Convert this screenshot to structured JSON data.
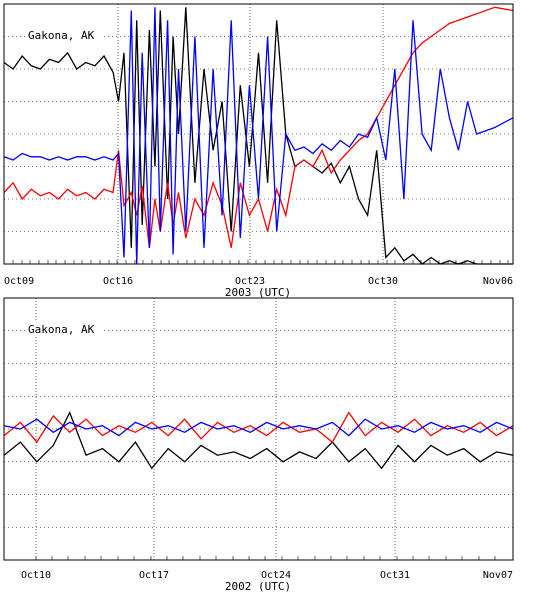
{
  "colors": {
    "background": "#ffffff",
    "grid": "#000000",
    "series_black": "#000000",
    "series_red": "#ff0000",
    "series_blue": "#0000ff"
  },
  "chart_data": [
    {
      "type": "line",
      "station_label": "Gakona, AK",
      "xlabel": "2003 (UTC)",
      "ylabel": "",
      "x_start": "2003-10-09",
      "x_end": "2003-11-06",
      "xticks": [
        "Oct09",
        "Oct16",
        "Oct23",
        "Oct30",
        "Nov06"
      ],
      "grid": true,
      "y_levels": 8,
      "series": [
        {
          "color": "black",
          "points": [
            [
              0,
              6.2
            ],
            [
              0.5,
              6.0
            ],
            [
              1,
              6.4
            ],
            [
              1.5,
              6.1
            ],
            [
              2,
              6.0
            ],
            [
              2.5,
              6.3
            ],
            [
              3,
              6.2
            ],
            [
              3.5,
              6.5
            ],
            [
              4,
              6.0
            ],
            [
              4.5,
              6.2
            ],
            [
              5,
              6.1
            ],
            [
              5.5,
              6.4
            ],
            [
              6,
              5.9
            ],
            [
              6.3,
              5.0
            ],
            [
              6.6,
              6.5
            ],
            [
              7,
              0.5
            ],
            [
              7.3,
              7.5
            ],
            [
              7.6,
              1.2
            ],
            [
              8,
              7.2
            ],
            [
              8.3,
              3.0
            ],
            [
              8.6,
              7.8
            ],
            [
              9,
              2.0
            ],
            [
              9.3,
              7.0
            ],
            [
              9.6,
              4.0
            ],
            [
              10,
              7.9
            ],
            [
              10.5,
              2.5
            ],
            [
              11,
              6.0
            ],
            [
              11.5,
              3.5
            ],
            [
              12,
              5.0
            ],
            [
              12.5,
              1.0
            ],
            [
              13,
              5.5
            ],
            [
              13.5,
              3.0
            ],
            [
              14,
              6.5
            ],
            [
              14.5,
              2.5
            ],
            [
              15,
              7.5
            ],
            [
              15.5,
              4.0
            ],
            [
              16,
              3.0
            ],
            [
              16.5,
              3.2
            ],
            [
              17,
              3.0
            ],
            [
              17.5,
              2.8
            ],
            [
              18,
              3.1
            ],
            [
              18.5,
              2.5
            ],
            [
              19,
              3.0
            ],
            [
              19.5,
              2.0
            ],
            [
              20,
              1.5
            ],
            [
              20.5,
              3.5
            ],
            [
              21,
              0.2
            ],
            [
              21.5,
              0.5
            ],
            [
              22,
              0.1
            ],
            [
              22.5,
              0.3
            ],
            [
              23,
              0.0
            ],
            [
              23.5,
              0.2
            ],
            [
              24,
              0.0
            ],
            [
              24.5,
              0.1
            ],
            [
              25,
              0.0
            ],
            [
              25.5,
              0.1
            ],
            [
              26,
              0.0
            ],
            [
              27,
              0.0
            ],
            [
              28,
              0.0
            ]
          ]
        },
        {
          "color": "red",
          "points": [
            [
              0,
              2.2
            ],
            [
              0.5,
              2.5
            ],
            [
              1,
              2.0
            ],
            [
              1.5,
              2.3
            ],
            [
              2,
              2.1
            ],
            [
              2.5,
              2.2
            ],
            [
              3,
              2.0
            ],
            [
              3.5,
              2.3
            ],
            [
              4,
              2.1
            ],
            [
              4.5,
              2.2
            ],
            [
              5,
              2.0
            ],
            [
              5.5,
              2.3
            ],
            [
              6,
              2.2
            ],
            [
              6.3,
              3.5
            ],
            [
              6.6,
              1.8
            ],
            [
              7,
              2.2
            ],
            [
              7.3,
              1.5
            ],
            [
              7.6,
              2.4
            ],
            [
              8,
              0.5
            ],
            [
              8.3,
              2.0
            ],
            [
              8.6,
              1.0
            ],
            [
              9,
              2.5
            ],
            [
              9.3,
              1.2
            ],
            [
              9.6,
              2.2
            ],
            [
              10,
              0.8
            ],
            [
              10.5,
              2.0
            ],
            [
              11,
              1.5
            ],
            [
              11.5,
              2.5
            ],
            [
              12,
              1.8
            ],
            [
              12.5,
              0.5
            ],
            [
              13,
              2.5
            ],
            [
              13.5,
              1.5
            ],
            [
              14,
              2.0
            ],
            [
              14.5,
              1.0
            ],
            [
              15,
              2.3
            ],
            [
              15.5,
              1.5
            ],
            [
              16,
              3.0
            ],
            [
              16.5,
              3.2
            ],
            [
              17,
              3.0
            ],
            [
              17.5,
              3.5
            ],
            [
              18,
              2.8
            ],
            [
              18.5,
              3.2
            ],
            [
              19,
              3.5
            ],
            [
              19.5,
              3.8
            ],
            [
              20,
              4.0
            ],
            [
              20.5,
              4.5
            ],
            [
              21,
              5.0
            ],
            [
              21.5,
              5.5
            ],
            [
              22,
              6.0
            ],
            [
              22.5,
              6.5
            ],
            [
              23,
              6.8
            ],
            [
              23.5,
              7.0
            ],
            [
              24,
              7.2
            ],
            [
              24.5,
              7.4
            ],
            [
              25,
              7.5
            ],
            [
              25.5,
              7.6
            ],
            [
              26,
              7.7
            ],
            [
              27,
              7.9
            ],
            [
              28,
              7.8
            ]
          ]
        },
        {
          "color": "blue",
          "points": [
            [
              0,
              3.3
            ],
            [
              0.5,
              3.2
            ],
            [
              1,
              3.4
            ],
            [
              1.5,
              3.3
            ],
            [
              2,
              3.3
            ],
            [
              2.5,
              3.2
            ],
            [
              3,
              3.3
            ],
            [
              3.5,
              3.2
            ],
            [
              4,
              3.3
            ],
            [
              4.5,
              3.3
            ],
            [
              5,
              3.2
            ],
            [
              5.5,
              3.3
            ],
            [
              6,
              3.2
            ],
            [
              6.3,
              3.4
            ],
            [
              6.6,
              0.2
            ],
            [
              7,
              7.8
            ],
            [
              7.3,
              0.0
            ],
            [
              7.6,
              6.5
            ],
            [
              8,
              0.5
            ],
            [
              8.3,
              7.9
            ],
            [
              8.6,
              1.0
            ],
            [
              9,
              7.5
            ],
            [
              9.3,
              0.3
            ],
            [
              9.6,
              6.0
            ],
            [
              10,
              1.0
            ],
            [
              10.5,
              7.0
            ],
            [
              11,
              0.5
            ],
            [
              11.5,
              6.0
            ],
            [
              12,
              1.5
            ],
            [
              12.5,
              7.5
            ],
            [
              13,
              0.8
            ],
            [
              13.5,
              5.5
            ],
            [
              14,
              2.0
            ],
            [
              14.5,
              7.0
            ],
            [
              15,
              1.0
            ],
            [
              15.5,
              4.0
            ],
            [
              16,
              3.5
            ],
            [
              16.5,
              3.6
            ],
            [
              17,
              3.4
            ],
            [
              17.5,
              3.7
            ],
            [
              18,
              3.5
            ],
            [
              18.5,
              3.8
            ],
            [
              19,
              3.6
            ],
            [
              19.5,
              4.0
            ],
            [
              20,
              3.9
            ],
            [
              20.5,
              4.5
            ],
            [
              21,
              3.2
            ],
            [
              21.5,
              6.0
            ],
            [
              22,
              2.0
            ],
            [
              22.5,
              7.5
            ],
            [
              23,
              4.0
            ],
            [
              23.5,
              3.5
            ],
            [
              24,
              6.0
            ],
            [
              24.5,
              4.5
            ],
            [
              25,
              3.5
            ],
            [
              25.5,
              5.0
            ],
            [
              26,
              4.0
            ],
            [
              27,
              4.2
            ],
            [
              28,
              4.5
            ]
          ]
        }
      ]
    },
    {
      "type": "line",
      "station_label": "Gakona, AK",
      "xlabel": "2002 (UTC)",
      "ylabel": "",
      "x_start": "2002-10-07",
      "x_end": "2002-11-07",
      "xticks": [
        "Oct10",
        "Oct17",
        "Oct24",
        "Oct31",
        "Nov07"
      ],
      "grid": true,
      "y_levels": 8,
      "series": [
        {
          "color": "black",
          "points": [
            [
              0,
              3.2
            ],
            [
              1,
              3.6
            ],
            [
              2,
              3.0
            ],
            [
              3,
              3.5
            ],
            [
              4,
              4.5
            ],
            [
              5,
              3.2
            ],
            [
              6,
              3.4
            ],
            [
              7,
              3.0
            ],
            [
              8,
              3.6
            ],
            [
              9,
              2.8
            ],
            [
              10,
              3.4
            ],
            [
              11,
              3.0
            ],
            [
              12,
              3.5
            ],
            [
              13,
              3.2
            ],
            [
              14,
              3.3
            ],
            [
              15,
              3.1
            ],
            [
              16,
              3.4
            ],
            [
              17,
              3.0
            ],
            [
              18,
              3.3
            ],
            [
              19,
              3.1
            ],
            [
              20,
              3.6
            ],
            [
              21,
              3.0
            ],
            [
              22,
              3.4
            ],
            [
              23,
              2.8
            ],
            [
              24,
              3.5
            ],
            [
              25,
              3.0
            ],
            [
              26,
              3.5
            ],
            [
              27,
              3.2
            ],
            [
              28,
              3.4
            ],
            [
              29,
              3.0
            ],
            [
              30,
              3.3
            ],
            [
              31,
              3.2
            ]
          ]
        },
        {
          "color": "red",
          "points": [
            [
              0,
              3.8
            ],
            [
              1,
              4.2
            ],
            [
              2,
              3.6
            ],
            [
              3,
              4.4
            ],
            [
              4,
              3.9
            ],
            [
              5,
              4.3
            ],
            [
              6,
              3.8
            ],
            [
              7,
              4.1
            ],
            [
              8,
              3.9
            ],
            [
              9,
              4.2
            ],
            [
              10,
              3.8
            ],
            [
              11,
              4.3
            ],
            [
              12,
              3.7
            ],
            [
              13,
              4.2
            ],
            [
              14,
              3.9
            ],
            [
              15,
              4.1
            ],
            [
              16,
              3.8
            ],
            [
              17,
              4.2
            ],
            [
              18,
              3.9
            ],
            [
              19,
              4.0
            ],
            [
              20,
              3.6
            ],
            [
              21,
              4.5
            ],
            [
              22,
              3.8
            ],
            [
              23,
              4.2
            ],
            [
              24,
              3.9
            ],
            [
              25,
              4.3
            ],
            [
              26,
              3.8
            ],
            [
              27,
              4.1
            ],
            [
              28,
              3.9
            ],
            [
              29,
              4.2
            ],
            [
              30,
              3.8
            ],
            [
              31,
              4.1
            ]
          ]
        },
        {
          "color": "blue",
          "points": [
            [
              0,
              4.1
            ],
            [
              1,
              4.0
            ],
            [
              2,
              4.3
            ],
            [
              3,
              3.9
            ],
            [
              4,
              4.2
            ],
            [
              5,
              4.0
            ],
            [
              6,
              4.1
            ],
            [
              7,
              3.8
            ],
            [
              8,
              4.2
            ],
            [
              9,
              4.0
            ],
            [
              10,
              4.1
            ],
            [
              11,
              3.9
            ],
            [
              12,
              4.2
            ],
            [
              13,
              4.0
            ],
            [
              14,
              4.1
            ],
            [
              15,
              3.9
            ],
            [
              16,
              4.2
            ],
            [
              17,
              4.0
            ],
            [
              18,
              4.1
            ],
            [
              19,
              4.0
            ],
            [
              20,
              4.2
            ],
            [
              21,
              3.8
            ],
            [
              22,
              4.3
            ],
            [
              23,
              4.0
            ],
            [
              24,
              4.1
            ],
            [
              25,
              3.9
            ],
            [
              26,
              4.2
            ],
            [
              27,
              4.0
            ],
            [
              28,
              4.1
            ],
            [
              29,
              3.9
            ],
            [
              30,
              4.2
            ],
            [
              31,
              4.0
            ]
          ]
        }
      ]
    }
  ]
}
